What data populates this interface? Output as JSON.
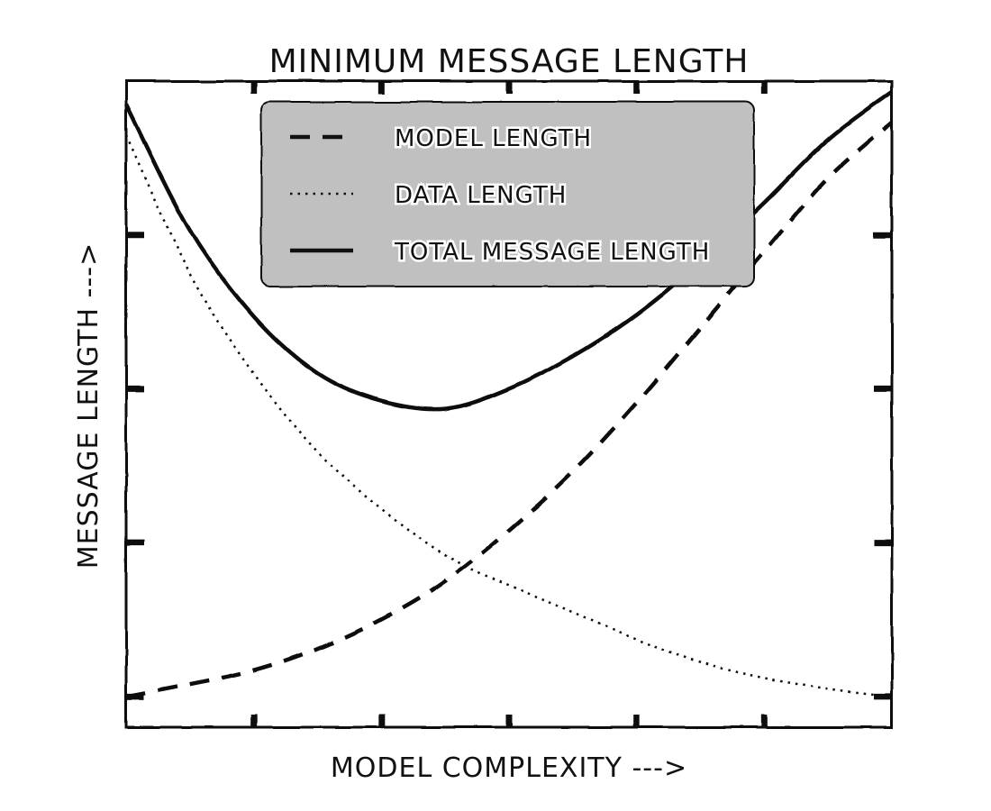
{
  "chart_data": {
    "type": "line",
    "title": "MINIMUM MESSAGE LENGTH",
    "xlabel": "MODEL COMPLEXITY --->",
    "ylabel": "MESSAGE LENGTH --->",
    "xlim": [
      0,
      6
    ],
    "ylim": [
      0,
      4.2
    ],
    "grid": false,
    "legend_position": "top-center",
    "legend_background": "#c0c0c0",
    "x": [
      0,
      0.5,
      1,
      1.5,
      2,
      2.5,
      3,
      3.5,
      4,
      4.5,
      5,
      5.5,
      6
    ],
    "series": [
      {
        "name": "MODEL LENGTH",
        "style": "dashed",
        "color": "#111111",
        "values": [
          0.2,
          0.28,
          0.37,
          0.51,
          0.7,
          0.95,
          1.28,
          1.66,
          2.11,
          2.6,
          3.09,
          3.57,
          3.93
        ]
      },
      {
        "name": "DATA LENGTH",
        "style": "dotted",
        "color": "#111111",
        "values": [
          3.85,
          2.95,
          2.3,
          1.79,
          1.42,
          1.12,
          0.92,
          0.75,
          0.57,
          0.42,
          0.32,
          0.25,
          0.2
        ]
      },
      {
        "name": "TOTAL MESSAGE LENGTH",
        "style": "solid",
        "color": "#111111",
        "values": [
          4.05,
          3.23,
          2.67,
          2.3,
          2.12,
          2.07,
          2.2,
          2.41,
          2.68,
          3.02,
          3.41,
          3.82,
          4.13
        ]
      }
    ]
  }
}
